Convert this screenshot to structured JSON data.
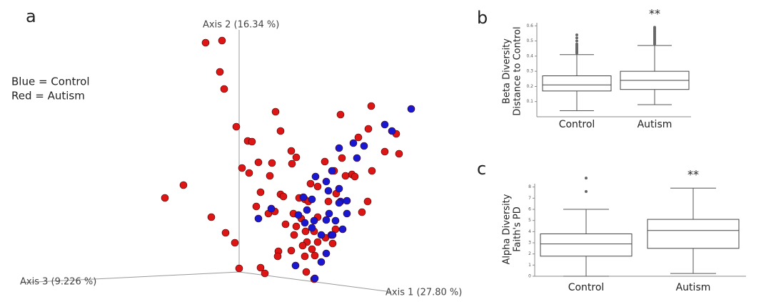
{
  "chart_data": [
    {
      "type": "scatter3d",
      "panel": "a",
      "x_label": "Axis 1 (27.80 %)",
      "y_label": "Axis 2 (16.34 %)",
      "z_label": "Axis 3 (9.226 %)",
      "legend_text": [
        "Blue = Control",
        "Red = Autism"
      ],
      "xlim": [
        200,
        600
      ],
      "ylim": [
        20,
        400
      ],
      "series": [
        {
          "color": "#dd1515",
          "x": [
            288,
            311,
            308,
            314,
            386,
            331,
            347,
            353,
            393,
            408,
            415,
            362,
            381,
            339,
            349,
            378,
            257,
            231,
            365,
            393,
            397,
            359,
            376,
            385,
            296,
            316,
            329,
            400,
            411,
            427,
            445,
            455,
            468,
            477,
            520,
            516,
            502,
            555,
            559,
            539,
            521,
            493,
            484,
            497,
            479,
            409,
            435,
            445,
            515,
            507,
            422,
            415,
            428,
            440,
            412,
            430,
            445,
            424,
            437,
            470,
            456,
            390,
            389,
            408,
            427,
            429,
            441,
            466,
            335,
            365,
            371,
            440,
            419,
            432,
            460,
            471
          ],
          "y": [
            367,
            370,
            326,
            302,
            270,
            249,
            229,
            228,
            243,
            215,
            206,
            199,
            198,
            191,
            184,
            180,
            167,
            149,
            157,
            154,
            151,
            137,
            127,
            130,
            122,
            100,
            86,
            112,
            127,
            147,
            122,
            200,
            187,
            266,
            278,
            246,
            234,
            239,
            211,
            214,
            187,
            182,
            180,
            179,
            205,
            197,
            169,
            165,
            144,
            129,
            120,
            109,
            102,
            102,
            97,
            87,
            87,
            82,
            77,
            105,
            93,
            74,
            67,
            75,
            67,
            45,
            68,
            85,
            50,
            51,
            43,
            35,
            149,
            144,
            144,
            155
          ]
        },
        {
          "color": "#1818d2",
          "x": [
            576,
            549,
            539,
            495,
            510,
            475,
            500,
            465,
            457,
            460,
            475,
            442,
            425,
            437,
            461,
            477,
            486,
            486,
            470,
            457,
            480,
            440,
            437,
            427,
            380,
            362,
            418,
            430,
            450,
            464,
            457,
            450,
            414,
            441,
            466,
            475
          ],
          "y": [
            274,
            243,
            252,
            226,
            222,
            219,
            205,
            187,
            172,
            159,
            162,
            179,
            150,
            147,
            127,
            144,
            145,
            127,
            117,
            118,
            105,
            117,
            107,
            114,
            134,
            120,
            125,
            132,
            97,
            97,
            71,
            59,
            54,
            36,
            97,
            142
          ]
        }
      ]
    },
    {
      "type": "box",
      "panel": "b",
      "y_label": [
        "Beta Diversity",
        "Distance to Control"
      ],
      "categories": [
        "Control",
        "Autism"
      ],
      "significance": [
        null,
        "**"
      ],
      "ylim": [
        0,
        0.62
      ],
      "yticks": [
        0.1,
        0.2,
        0.3,
        0.4,
        0.5,
        0.6
      ],
      "boxes": [
        {
          "min": 0.04,
          "q1": 0.17,
          "median": 0.21,
          "q3": 0.27,
          "max": 0.41,
          "outliers": [
            0.42,
            0.43,
            0.44,
            0.45,
            0.46,
            0.47,
            0.48,
            0.5,
            0.52,
            0.54
          ]
        },
        {
          "min": 0.08,
          "q1": 0.18,
          "median": 0.24,
          "q3": 0.3,
          "max": 0.47,
          "outliers": [
            0.48,
            0.49,
            0.5,
            0.51,
            0.52,
            0.53,
            0.54,
            0.55,
            0.56,
            0.57,
            0.58,
            0.59
          ]
        }
      ]
    },
    {
      "type": "box",
      "panel": "c",
      "y_label": [
        "Alpha Diversity",
        "Faith's PD"
      ],
      "categories": [
        "Control",
        "Autism"
      ],
      "significance": [
        null,
        "**"
      ],
      "ylim": [
        0,
        8.3
      ],
      "yticks": [
        0,
        1,
        2,
        3,
        4,
        5,
        6,
        7,
        8
      ],
      "boxes": [
        {
          "min": 0,
          "q1": 1.8,
          "median": 2.9,
          "q3": 3.8,
          "max": 6.0,
          "outliers": [
            7.6,
            8.8
          ]
        },
        {
          "min": 0.25,
          "q1": 2.5,
          "median": 4.1,
          "q3": 5.1,
          "max": 7.9,
          "outliers": []
        }
      ]
    }
  ]
}
